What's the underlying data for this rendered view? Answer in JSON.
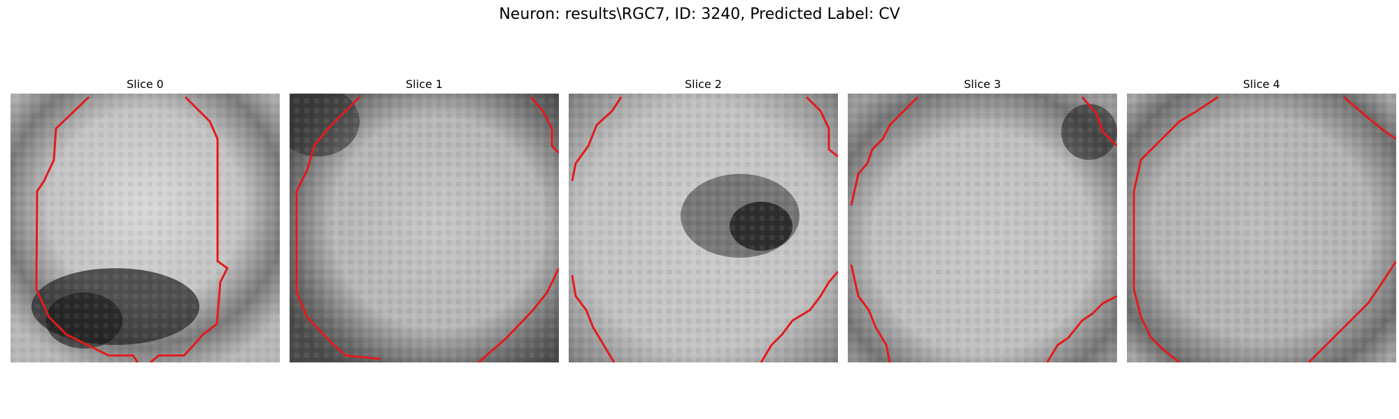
{
  "figure": {
    "title": "Neuron: results\\RGC7, ID: 3240, Predicted Label: CV",
    "contour_color": "#ff0000"
  },
  "slices": [
    {
      "label": "Slice 0"
    },
    {
      "label": "Slice 1"
    },
    {
      "label": "Slice 2"
    },
    {
      "label": "Slice 3"
    },
    {
      "label": "Slice 4"
    }
  ]
}
